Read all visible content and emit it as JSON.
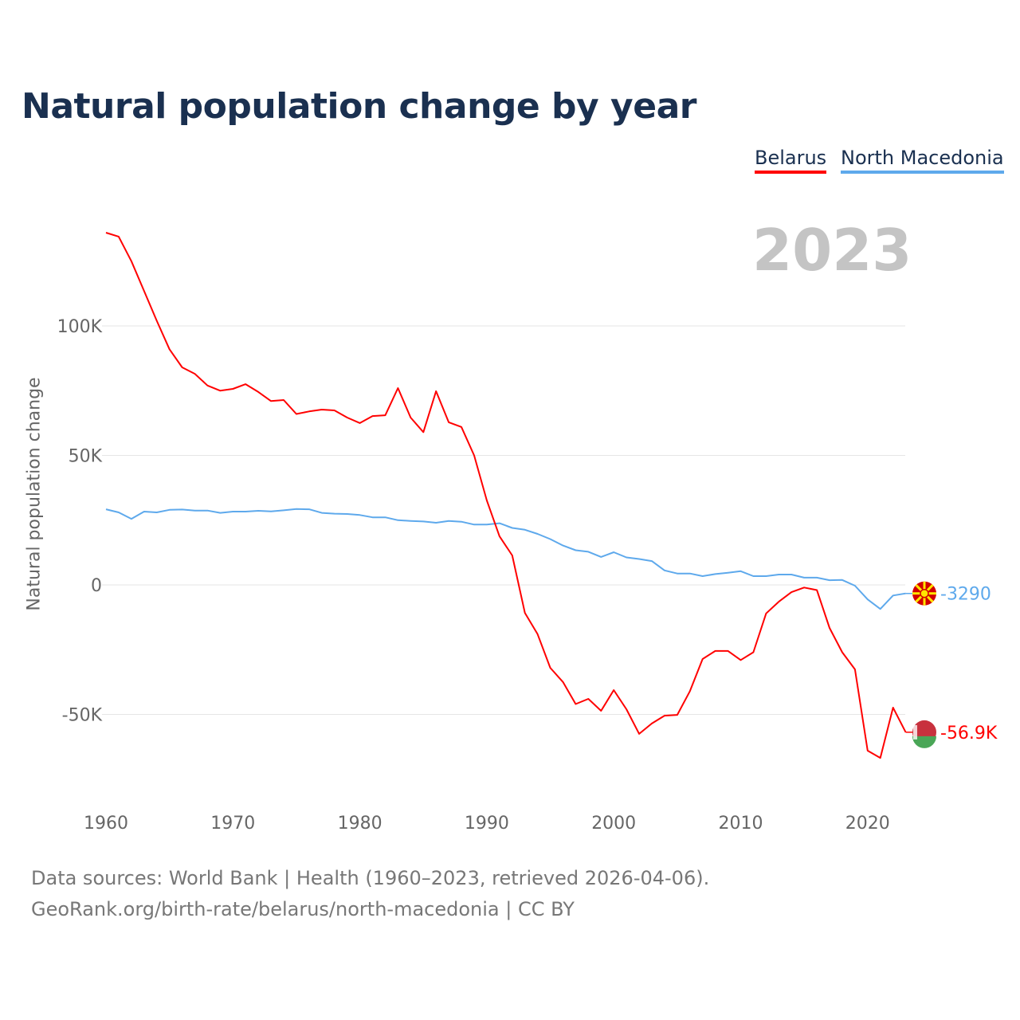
{
  "chart_data": {
    "type": "line",
    "title": "Natural population change by year",
    "ylabel": "Natural population change",
    "xlabel": "",
    "year_label": "2023",
    "x": [
      1960,
      1961,
      1962,
      1963,
      1964,
      1965,
      1966,
      1967,
      1968,
      1969,
      1970,
      1971,
      1972,
      1973,
      1974,
      1975,
      1976,
      1977,
      1978,
      1979,
      1980,
      1981,
      1982,
      1983,
      1984,
      1985,
      1986,
      1987,
      1988,
      1989,
      1990,
      1991,
      1992,
      1993,
      1994,
      1995,
      1996,
      1997,
      1998,
      1999,
      2000,
      2001,
      2002,
      2003,
      2004,
      2005,
      2006,
      2007,
      2008,
      2009,
      2010,
      2011,
      2012,
      2013,
      2014,
      2015,
      2016,
      2017,
      2018,
      2019,
      2020,
      2021,
      2022,
      2023
    ],
    "series": [
      {
        "name": "Belarus",
        "color": "#ff0000",
        "end_label": "-56.9K",
        "values": [
          136000,
          134500,
          125000,
          113500,
          102000,
          91000,
          84000,
          81500,
          77000,
          75000,
          75700,
          77500,
          74500,
          71000,
          71400,
          66000,
          67000,
          67700,
          67400,
          64600,
          62500,
          65200,
          65500,
          76000,
          64600,
          59000,
          74800,
          62800,
          61000,
          50000,
          32600,
          18800,
          11400,
          -10800,
          -19000,
          -32000,
          -37500,
          -46000,
          -44000,
          -48600,
          -40600,
          -48000,
          -57500,
          -53500,
          -50500,
          -50200,
          -41000,
          -28600,
          -25500,
          -25500,
          -29000,
          -26000,
          -11000,
          -6500,
          -2800,
          -1000,
          -2000,
          -16600,
          -26000,
          -32600,
          -64000,
          -66800,
          -47400,
          -56900
        ]
      },
      {
        "name": "North Macedonia",
        "color": "#5ea9ec",
        "end_label": "-3290",
        "values": [
          29200,
          28000,
          25500,
          28300,
          28000,
          29000,
          29100,
          28700,
          28700,
          27800,
          28300,
          28300,
          28600,
          28400,
          28800,
          29300,
          29200,
          27800,
          27500,
          27400,
          27000,
          26100,
          26100,
          25000,
          24700,
          24500,
          24000,
          24700,
          24400,
          23300,
          23300,
          23800,
          22000,
          21300,
          19700,
          17700,
          15200,
          13400,
          12800,
          10800,
          12600,
          10600,
          10000,
          9200,
          5600,
          4400,
          4400,
          3400,
          4200,
          4700,
          5300,
          3400,
          3400,
          4000,
          4000,
          2800,
          2800,
          1800,
          1900,
          -300,
          -5600,
          -9300,
          -4100,
          -3290
        ]
      }
    ],
    "yticks": [
      {
        "v": 100000,
        "label": "100K"
      },
      {
        "v": 50000,
        "label": "50K"
      },
      {
        "v": 0,
        "label": "0"
      },
      {
        "v": -50000,
        "label": "-50K"
      }
    ],
    "xticks": [
      {
        "v": 1960,
        "label": "1960"
      },
      {
        "v": 1970,
        "label": "1970"
      },
      {
        "v": 1980,
        "label": "1980"
      },
      {
        "v": 1990,
        "label": "1990"
      },
      {
        "v": 2000,
        "label": "2000"
      },
      {
        "v": 2010,
        "label": "2010"
      },
      {
        "v": 2020,
        "label": "2020"
      }
    ],
    "grid": true,
    "legend_position": "top-right"
  },
  "footer": {
    "line1": "Data sources: World Bank | Health (1960–2023, retrieved 2026-04-06).",
    "line2": "GeoRank.org/birth-rate/belarus/north-macedonia | CC BY"
  }
}
